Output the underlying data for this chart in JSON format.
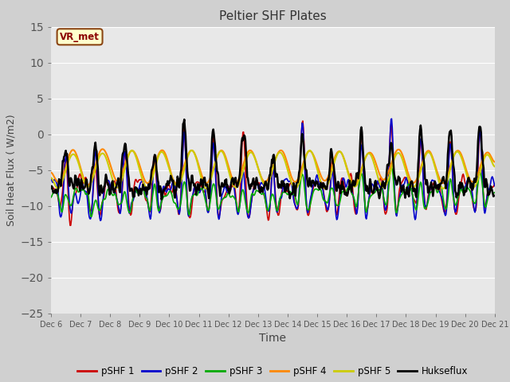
{
  "title": "Peltier SHF Plates",
  "xlabel": "Time",
  "ylabel": "Soil Heat Flux ( W/m2)",
  "ylim": [
    -25,
    15
  ],
  "xtick_labels": [
    "Dec 6",
    "Dec 7",
    "Dec 8",
    "Dec 9",
    "Dec 10",
    "Dec 11",
    "Dec 12",
    "Dec 13",
    "Dec 14",
    "Dec 15",
    "Dec 16",
    "Dec 17",
    "Dec 18",
    "Dec 19",
    "Dec 20",
    "Dec 21"
  ],
  "annotation_text": "VR_met",
  "annotation_bg": "#ffffcc",
  "annotation_border": "#8B4513",
  "fig_bg": "#d0d0d0",
  "plot_bg": "#e8e8e8",
  "line_colors": {
    "pSHF 1": "#cc0000",
    "pSHF 2": "#0000cc",
    "pSHF 3": "#00aa00",
    "pSHF 4": "#ff8800",
    "pSHF 5": "#cccc00",
    "Hukseflux": "#000000"
  },
  "line_widths": {
    "pSHF 1": 1.2,
    "pSHF 2": 1.2,
    "pSHF 3": 1.2,
    "pSHF 4": 1.5,
    "pSHF 5": 1.5,
    "Hukseflux": 1.8
  },
  "days": 15,
  "pts_per_day": 48
}
